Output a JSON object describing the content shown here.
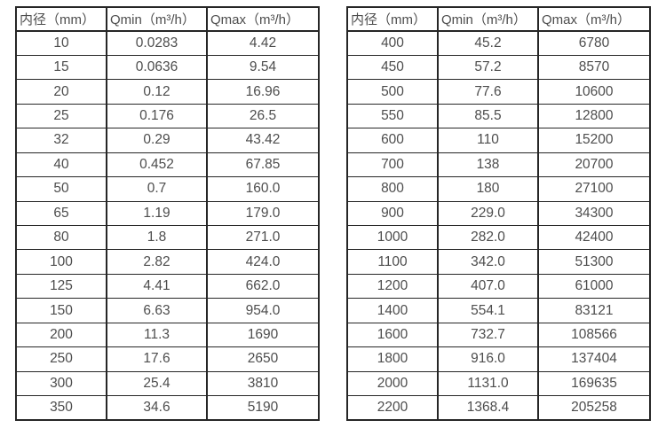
{
  "colors": {
    "border": "#262626",
    "text": "#4d4d4d",
    "background": "#ffffff"
  },
  "tables": [
    {
      "name": "flow-range-table-small-diameters",
      "headers": [
        "内径（mm）",
        "Qmin（m³/h）",
        "Qmax（m³/h）"
      ],
      "rows": [
        [
          "10",
          "0.0283",
          "4.42"
        ],
        [
          "15",
          "0.0636",
          "9.54"
        ],
        [
          "20",
          "0.12",
          "16.96"
        ],
        [
          "25",
          "0.176",
          "26.5"
        ],
        [
          "32",
          "0.29",
          "43.42"
        ],
        [
          "40",
          "0.452",
          "67.85"
        ],
        [
          "50",
          "0.7",
          "160.0"
        ],
        [
          "65",
          "1.19",
          "179.0"
        ],
        [
          "80",
          "1.8",
          "271.0"
        ],
        [
          "100",
          "2.82",
          "424.0"
        ],
        [
          "125",
          "4.41",
          "662.0"
        ],
        [
          "150",
          "6.63",
          "954.0"
        ],
        [
          "200",
          "11.3",
          "1690"
        ],
        [
          "250",
          "17.6",
          "2650"
        ],
        [
          "300",
          "25.4",
          "3810"
        ],
        [
          "350",
          "34.6",
          "5190"
        ]
      ]
    },
    {
      "name": "flow-range-table-large-diameters",
      "headers": [
        "内径（mm）",
        "Qmin（m³/h）",
        "Qmax（m³/h）"
      ],
      "rows": [
        [
          "400",
          "45.2",
          "6780"
        ],
        [
          "450",
          "57.2",
          "8570"
        ],
        [
          "500",
          "77.6",
          "10600"
        ],
        [
          "550",
          "85.5",
          "12800"
        ],
        [
          "600",
          "110",
          "15200"
        ],
        [
          "700",
          "138",
          "20700"
        ],
        [
          "800",
          "180",
          "27100"
        ],
        [
          "900",
          "229.0",
          "34300"
        ],
        [
          "1000",
          "282.0",
          "42400"
        ],
        [
          "1100",
          "342.0",
          "51300"
        ],
        [
          "1200",
          "407.0",
          "61000"
        ],
        [
          "1400",
          "554.1",
          "83121"
        ],
        [
          "1600",
          "732.7",
          "108566"
        ],
        [
          "1800",
          "916.0",
          "137404"
        ],
        [
          "2000",
          "1131.0",
          "169635"
        ],
        [
          "2200",
          "1368.4",
          "205258"
        ]
      ]
    }
  ]
}
